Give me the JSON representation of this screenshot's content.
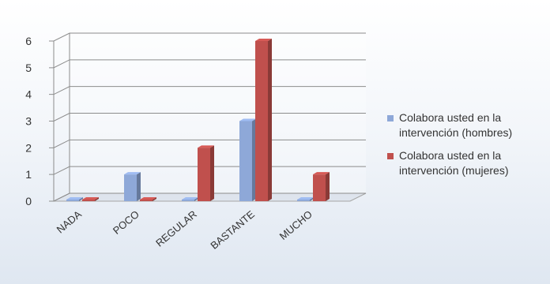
{
  "chart_data": {
    "type": "bar",
    "categories": [
      "NADA",
      "POCO",
      "REGULAR",
      "BASTANTE",
      "MUCHO"
    ],
    "series": [
      {
        "name": "Colabora usted en la intervención (hombres)",
        "values": [
          0,
          1,
          0,
          3,
          0
        ],
        "color": "#8ea8d8"
      },
      {
        "name": "Colabora usted en la intervención (mujeres)",
        "values": [
          0,
          0,
          2,
          6,
          1
        ],
        "color": "#c0504d"
      }
    ],
    "yticks": [
      "0",
      "1",
      "2",
      "3",
      "4",
      "5",
      "6"
    ],
    "ylim": [
      0,
      6
    ],
    "grid": true,
    "legend_position": "right",
    "style": "3d-clustered-column"
  }
}
